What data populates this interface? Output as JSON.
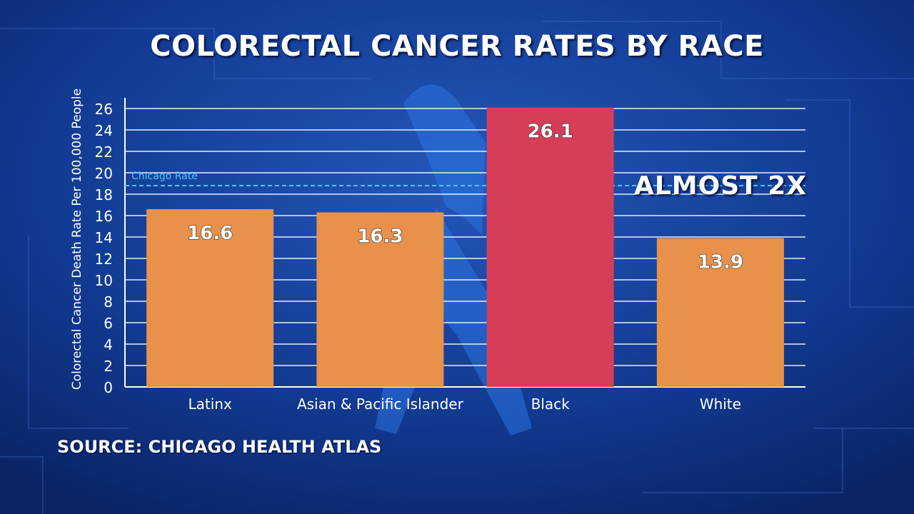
{
  "title": "COLORECTAL CANCER RATES BY RACE",
  "source": "SOURCE: CHICAGO HEALTH ATLAS",
  "colors": {
    "background_dark": "#0b2a78",
    "background_light": "#1f4fb0",
    "bar_default": "#e8914a",
    "bar_highlight": "#d63d57",
    "grid": "#ffffff",
    "reference_line": "#4fc3f7",
    "ribbon": "#2a6fd8"
  },
  "chart_data": {
    "type": "bar",
    "title": "COLORECTAL CANCER RATES BY RACE",
    "xlabel": "",
    "ylabel": "Colorectal Cancer Death Rate Per 100,000 People",
    "categories": [
      "Latinx",
      "Asian & Pacific Islander",
      "Black",
      "White"
    ],
    "values": [
      16.6,
      16.3,
      26.1,
      13.9
    ],
    "value_labels": [
      "16.6",
      "16.3",
      "26.1",
      "13.9"
    ],
    "highlight_category": "Black",
    "ylim": [
      0,
      26
    ],
    "yticks": [
      0,
      2,
      4,
      6,
      8,
      10,
      12,
      14,
      16,
      18,
      20,
      22,
      24,
      26
    ],
    "grid": true,
    "reference_line": {
      "label": "Chicago Rate",
      "value": 18.8
    },
    "annotation": "ALMOST 2X"
  }
}
